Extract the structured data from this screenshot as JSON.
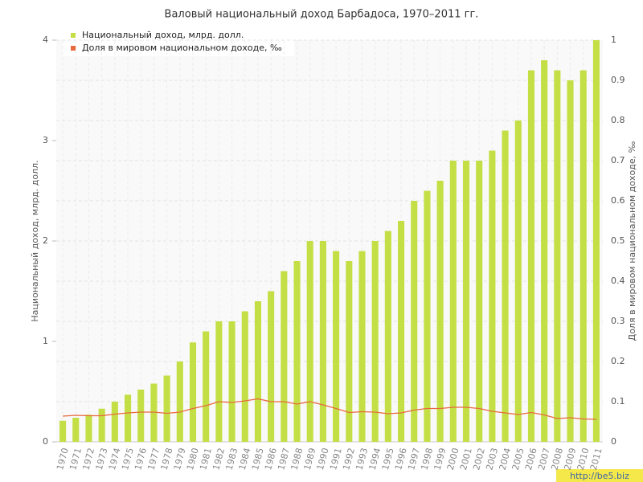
{
  "chart_data": {
    "type": "bar-line",
    "title": "Валовый национальный доход Барбадоса, 1970–2011 гг.",
    "y_label": "Национальный доход, млрд. долл.",
    "y2_label": "Доля в мировом национальном доходе, ‰",
    "categories": [
      "1970",
      "1971",
      "1972",
      "1973",
      "1974",
      "1975",
      "1976",
      "1977",
      "1978",
      "1979",
      "1980",
      "1981",
      "1982",
      "1983",
      "1984",
      "1985",
      "1986",
      "1987",
      "1988",
      "1989",
      "1990",
      "1991",
      "1992",
      "1993",
      "1994",
      "1995",
      "1996",
      "1997",
      "1998",
      "1999",
      "2000",
      "2001",
      "2002",
      "2003",
      "2004",
      "2005",
      "2006",
      "2007",
      "2008",
      "2009",
      "2010",
      "2011"
    ],
    "series": [
      {
        "name": "Национальный доход, млрд. долл.",
        "color": "#c3df45",
        "type": "bar",
        "values": [
          0.21,
          0.24,
          0.27,
          0.33,
          0.4,
          0.47,
          0.52,
          0.58,
          0.66,
          0.8,
          0.99,
          1.1,
          1.2,
          1.2,
          1.3,
          1.4,
          1.5,
          1.7,
          1.8,
          2.0,
          2.0,
          1.9,
          1.8,
          1.9,
          2.0,
          2.1,
          2.2,
          2.4,
          2.5,
          2.6,
          2.8,
          2.8,
          2.8,
          2.9,
          3.1,
          3.2,
          3.7,
          3.8,
          3.7,
          3.6,
          3.7,
          4.0
        ]
      },
      {
        "name": "Доля в мировом национальном доходе, ‰",
        "color": "#e8693d",
        "type": "line",
        "axis": "y2",
        "values": [
          0.064,
          0.066,
          0.065,
          0.065,
          0.069,
          0.072,
          0.074,
          0.074,
          0.071,
          0.074,
          0.083,
          0.09,
          0.1,
          0.098,
          0.102,
          0.107,
          0.1,
          0.1,
          0.094,
          0.1,
          0.092,
          0.083,
          0.073,
          0.075,
          0.074,
          0.07,
          0.072,
          0.079,
          0.083,
          0.083,
          0.086,
          0.086,
          0.083,
          0.076,
          0.072,
          0.068,
          0.073,
          0.067,
          0.058,
          0.06,
          0.057,
          0.056
        ]
      }
    ],
    "ylim": [
      0,
      4
    ],
    "yticks": [
      0,
      1,
      2,
      3,
      4
    ],
    "y2lim": [
      0,
      1
    ],
    "y2ticks": [
      0,
      0.1,
      0.2,
      0.3,
      0.4,
      0.5,
      0.6,
      0.7,
      0.8,
      0.9,
      1
    ],
    "grid": true,
    "watermark": "http://be5.biz"
  }
}
